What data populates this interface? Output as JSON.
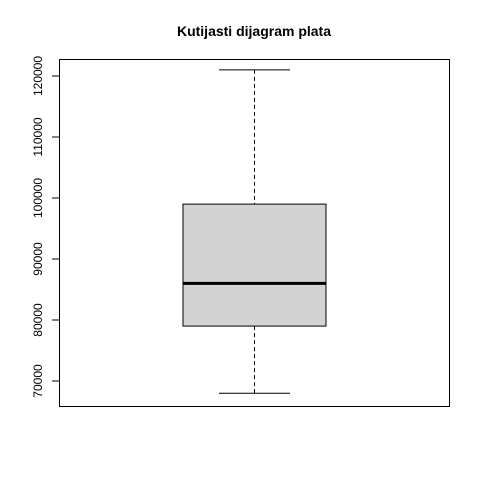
{
  "chart_data": {
    "type": "boxplot",
    "title": "Kutijasti dijagram plata",
    "xlabel": "",
    "ylabel": "",
    "ylim": [
      66000,
      123000
    ],
    "y_ticks": [
      70000,
      80000,
      90000,
      100000,
      110000,
      120000
    ],
    "y_tick_labels": [
      "70000",
      "80000",
      "90000",
      "100000",
      "110000",
      "120000"
    ],
    "grid": false,
    "series": [
      {
        "min": 68000,
        "q1": 79000,
        "median": 86000,
        "q3": 99000,
        "max": 121000
      }
    ],
    "colors": {
      "box_fill": "#d3d3d3",
      "stroke": "#000000"
    }
  }
}
